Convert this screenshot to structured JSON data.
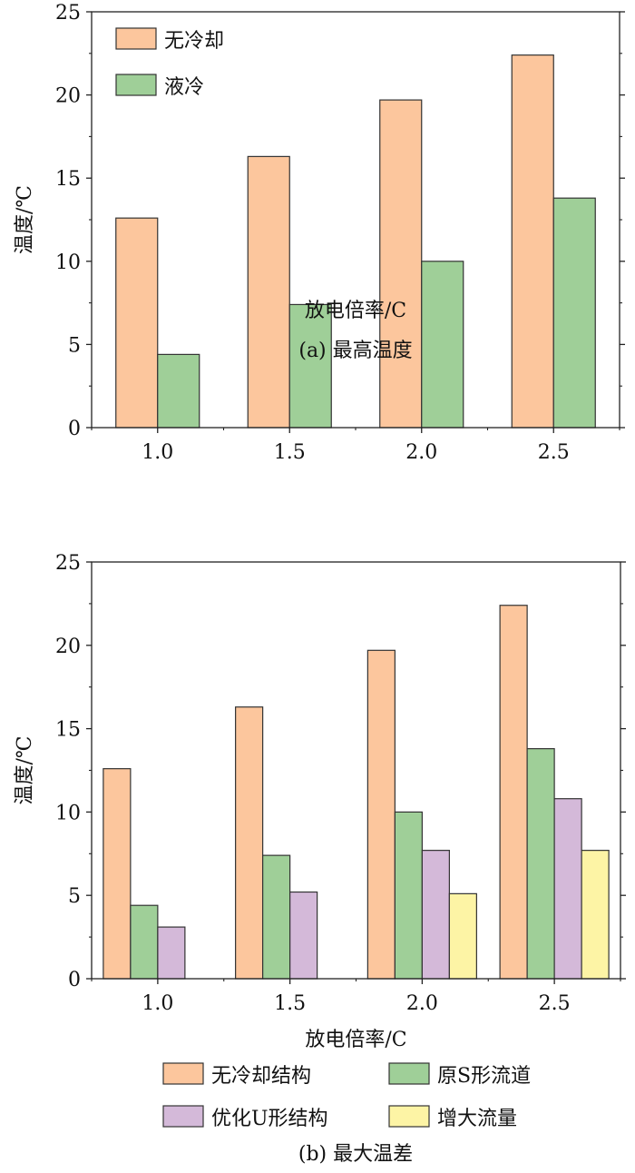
{
  "chart_data": [
    {
      "type": "bar",
      "caption": "(a) 最高温度",
      "xlabel": "放电倍率/C",
      "ylabel": "温度/℃",
      "ylim": [
        0,
        25
      ],
      "yticks": [
        "0",
        "5",
        "10",
        "15",
        "20",
        "25"
      ],
      "categories": [
        "1.0",
        "1.5",
        "2.0",
        "2.5"
      ],
      "legend_position": "top-left",
      "series": [
        {
          "name": "无冷却",
          "color": "#fcc69d",
          "values": [
            12.6,
            16.3,
            19.7,
            22.4
          ]
        },
        {
          "name": "液冷",
          "color": "#9fcf98",
          "values": [
            4.4,
            7.4,
            10.0,
            13.8
          ]
        }
      ]
    },
    {
      "type": "bar",
      "caption": "(b) 最大温差",
      "xlabel": "放电倍率/C",
      "ylabel": "温度/℃",
      "ylim": [
        0,
        25
      ],
      "yticks": [
        "0",
        "5",
        "10",
        "15",
        "20",
        "25"
      ],
      "categories": [
        "1.0",
        "1.5",
        "2.0",
        "2.5"
      ],
      "legend_position": "bottom",
      "series": [
        {
          "name": "无冷却结构",
          "color": "#fcc69d",
          "values": [
            12.6,
            16.3,
            19.7,
            22.4
          ]
        },
        {
          "name": "原S形流道",
          "color": "#9fcf98",
          "values": [
            4.4,
            7.4,
            10.0,
            13.8
          ]
        },
        {
          "name": "优化U形结构",
          "color": "#d4b9d9",
          "values": [
            3.1,
            5.2,
            7.7,
            10.8
          ]
        },
        {
          "name": "增大流量",
          "color": "#fdf4a5",
          "values": [
            null,
            null,
            5.1,
            7.7
          ]
        }
      ]
    }
  ]
}
